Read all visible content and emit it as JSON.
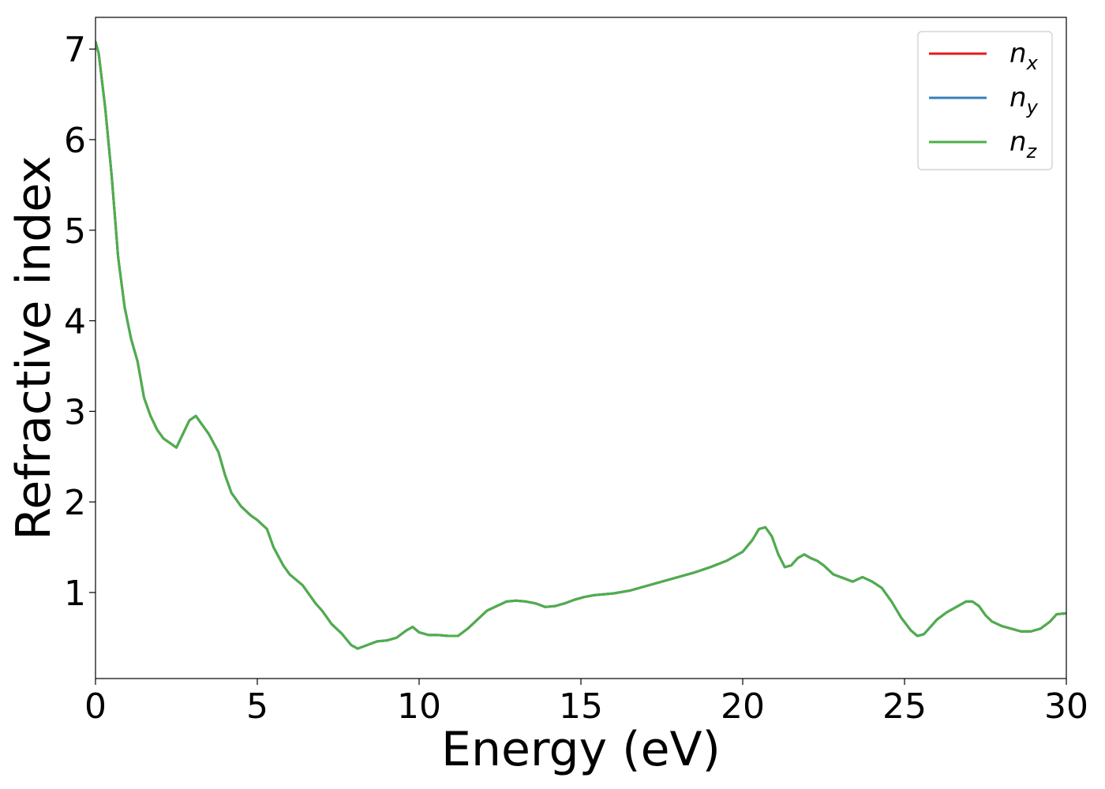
{
  "chart_data": {
    "type": "line",
    "xlabel": "Energy (eV)",
    "ylabel": "Refractive index",
    "xlim": [
      0,
      30
    ],
    "ylim": [
      0.05,
      7.35
    ],
    "xticks": [
      0,
      5,
      10,
      15,
      20,
      25,
      30
    ],
    "xtick_labels": [
      "0",
      "5",
      "10",
      "15",
      "20",
      "25",
      "30"
    ],
    "yticks": [
      1,
      2,
      3,
      4,
      5,
      6,
      7
    ],
    "ytick_labels": [
      "1",
      "2",
      "3",
      "4",
      "5",
      "6",
      "7"
    ],
    "grid": false,
    "legend_position": "top-right",
    "x": [
      0,
      0.1,
      0.3,
      0.5,
      0.7,
      0.9,
      1.1,
      1.3,
      1.5,
      1.7,
      1.9,
      2.1,
      2.3,
      2.5,
      2.7,
      2.9,
      3.1,
      3.3,
      3.5,
      3.8,
      4.0,
      4.2,
      4.5,
      4.8,
      5.0,
      5.3,
      5.5,
      5.8,
      6.0,
      6.4,
      6.8,
      7.0,
      7.3,
      7.6,
      7.9,
      8.1,
      8.4,
      8.7,
      9.0,
      9.3,
      9.6,
      9.8,
      10.0,
      10.3,
      10.6,
      10.9,
      11.2,
      11.5,
      11.8,
      12.1,
      12.4,
      12.7,
      13.0,
      13.3,
      13.6,
      13.9,
      14.2,
      14.5,
      14.8,
      15.1,
      15.4,
      15.7,
      16.0,
      16.5,
      17.0,
      17.5,
      18.0,
      18.5,
      19.0,
      19.5,
      20.0,
      20.3,
      20.5,
      20.7,
      20.9,
      21.1,
      21.3,
      21.5,
      21.7,
      21.9,
      22.1,
      22.3,
      22.5,
      22.8,
      23.1,
      23.4,
      23.7,
      24.0,
      24.3,
      24.6,
      24.9,
      25.2,
      25.4,
      25.6,
      25.8,
      26.0,
      26.3,
      26.6,
      26.9,
      27.1,
      27.3,
      27.5,
      27.7,
      28.0,
      28.3,
      28.6,
      28.9,
      29.2,
      29.5,
      29.7,
      30.0
    ],
    "series": [
      {
        "name": "n_x",
        "color": "#e41a1c",
        "values": [
          7.08,
          6.95,
          6.35,
          5.6,
          4.7,
          4.15,
          3.8,
          3.55,
          3.15,
          2.95,
          2.8,
          2.7,
          2.65,
          2.6,
          2.75,
          2.9,
          2.95,
          2.85,
          2.75,
          2.55,
          2.3,
          2.1,
          1.95,
          1.85,
          1.8,
          1.7,
          1.5,
          1.3,
          1.2,
          1.08,
          0.88,
          0.8,
          0.65,
          0.55,
          0.42,
          0.38,
          0.42,
          0.46,
          0.47,
          0.5,
          0.58,
          0.62,
          0.56,
          0.53,
          0.53,
          0.52,
          0.52,
          0.6,
          0.7,
          0.8,
          0.85,
          0.9,
          0.91,
          0.9,
          0.88,
          0.84,
          0.85,
          0.88,
          0.92,
          0.95,
          0.97,
          0.98,
          0.99,
          1.02,
          1.07,
          1.12,
          1.17,
          1.22,
          1.28,
          1.35,
          1.45,
          1.58,
          1.7,
          1.72,
          1.62,
          1.42,
          1.28,
          1.3,
          1.38,
          1.42,
          1.38,
          1.35,
          1.3,
          1.2,
          1.16,
          1.12,
          1.17,
          1.12,
          1.05,
          0.9,
          0.72,
          0.58,
          0.52,
          0.54,
          0.62,
          0.7,
          0.78,
          0.84,
          0.9,
          0.9,
          0.85,
          0.75,
          0.68,
          0.63,
          0.6,
          0.57,
          0.57,
          0.6,
          0.68,
          0.76,
          0.77
        ]
      },
      {
        "name": "n_y",
        "color": "#377eb8",
        "values": [
          7.08,
          6.95,
          6.35,
          5.6,
          4.7,
          4.15,
          3.8,
          3.55,
          3.15,
          2.95,
          2.8,
          2.7,
          2.65,
          2.6,
          2.75,
          2.9,
          2.95,
          2.85,
          2.75,
          2.55,
          2.3,
          2.1,
          1.95,
          1.85,
          1.8,
          1.7,
          1.5,
          1.3,
          1.2,
          1.08,
          0.88,
          0.8,
          0.65,
          0.55,
          0.42,
          0.38,
          0.42,
          0.46,
          0.47,
          0.5,
          0.58,
          0.62,
          0.56,
          0.53,
          0.53,
          0.52,
          0.52,
          0.6,
          0.7,
          0.8,
          0.85,
          0.9,
          0.91,
          0.9,
          0.88,
          0.84,
          0.85,
          0.88,
          0.92,
          0.95,
          0.97,
          0.98,
          0.99,
          1.02,
          1.07,
          1.12,
          1.17,
          1.22,
          1.28,
          1.35,
          1.45,
          1.58,
          1.7,
          1.72,
          1.62,
          1.42,
          1.28,
          1.3,
          1.38,
          1.42,
          1.38,
          1.35,
          1.3,
          1.2,
          1.16,
          1.12,
          1.17,
          1.12,
          1.05,
          0.9,
          0.72,
          0.58,
          0.52,
          0.54,
          0.62,
          0.7,
          0.78,
          0.84,
          0.9,
          0.9,
          0.85,
          0.75,
          0.68,
          0.63,
          0.6,
          0.57,
          0.57,
          0.6,
          0.68,
          0.76,
          0.77
        ]
      },
      {
        "name": "n_z",
        "color": "#4daf4a",
        "values": [
          7.08,
          6.95,
          6.35,
          5.6,
          4.7,
          4.15,
          3.8,
          3.55,
          3.15,
          2.95,
          2.8,
          2.7,
          2.65,
          2.6,
          2.75,
          2.9,
          2.95,
          2.85,
          2.75,
          2.55,
          2.3,
          2.1,
          1.95,
          1.85,
          1.8,
          1.7,
          1.5,
          1.3,
          1.2,
          1.08,
          0.88,
          0.8,
          0.65,
          0.55,
          0.42,
          0.38,
          0.42,
          0.46,
          0.47,
          0.5,
          0.58,
          0.62,
          0.56,
          0.53,
          0.53,
          0.52,
          0.52,
          0.6,
          0.7,
          0.8,
          0.85,
          0.9,
          0.91,
          0.9,
          0.88,
          0.84,
          0.85,
          0.88,
          0.92,
          0.95,
          0.97,
          0.98,
          0.99,
          1.02,
          1.07,
          1.12,
          1.17,
          1.22,
          1.28,
          1.35,
          1.45,
          1.58,
          1.7,
          1.72,
          1.62,
          1.42,
          1.28,
          1.3,
          1.38,
          1.42,
          1.38,
          1.35,
          1.3,
          1.2,
          1.16,
          1.12,
          1.17,
          1.12,
          1.05,
          0.9,
          0.72,
          0.58,
          0.52,
          0.54,
          0.62,
          0.7,
          0.78,
          0.84,
          0.9,
          0.9,
          0.85,
          0.75,
          0.68,
          0.63,
          0.6,
          0.57,
          0.57,
          0.6,
          0.68,
          0.76,
          0.77
        ]
      }
    ],
    "legend": [
      {
        "base": "n",
        "sub": "x",
        "color": "#e41a1c"
      },
      {
        "base": "n",
        "sub": "y",
        "color": "#377eb8"
      },
      {
        "base": "n",
        "sub": "z",
        "color": "#4daf4a"
      }
    ]
  }
}
